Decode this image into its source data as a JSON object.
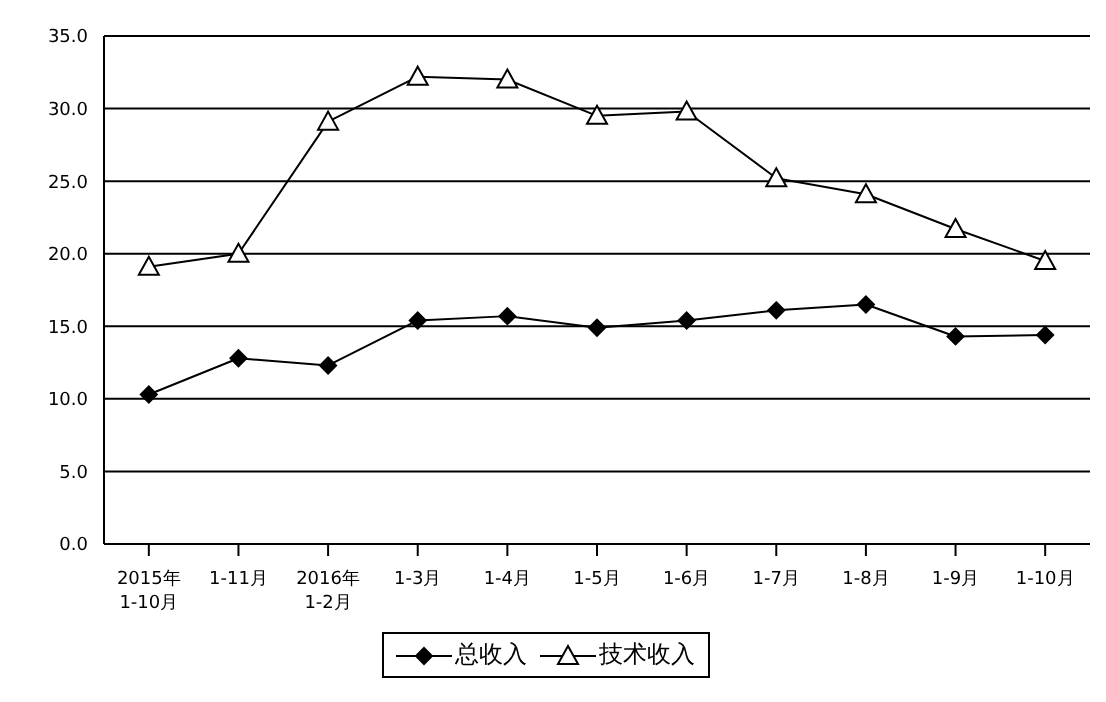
{
  "chart_data": {
    "type": "line",
    "categories": [
      "2015年\n1-10月",
      "1-11月",
      "2016年\n1-2月",
      "1-3月",
      "1-4月",
      "1-5月",
      "1-6月",
      "1-7月",
      "1-8月",
      "1-9月",
      "1-10月"
    ],
    "series": [
      {
        "name": "总收入",
        "color": "#000000",
        "marker": "diamond",
        "values": [
          10.3,
          12.8,
          12.3,
          15.4,
          15.7,
          14.9,
          15.4,
          16.1,
          16.5,
          14.3,
          14.4
        ]
      },
      {
        "name": "技术收入",
        "color": "#000000",
        "marker": "triangle",
        "values": [
          19.1,
          20.0,
          29.1,
          32.2,
          32.0,
          29.5,
          29.8,
          25.2,
          24.1,
          21.7,
          19.5
        ]
      }
    ],
    "ylim": [
      0,
      35
    ],
    "yticks": [
      {
        "value": 0,
        "label": "0.0"
      },
      {
        "value": 5,
        "label": "5.0"
      },
      {
        "value": 10,
        "label": "10.0"
      },
      {
        "value": 15,
        "label": "15.0"
      },
      {
        "value": 20,
        "label": "20.0"
      },
      {
        "value": 25,
        "label": "25.0"
      },
      {
        "value": 30,
        "label": "30.0"
      },
      {
        "value": 35,
        "label": "35.0"
      }
    ],
    "grid": "y",
    "legend": "bottom",
    "line_style": "solid"
  }
}
